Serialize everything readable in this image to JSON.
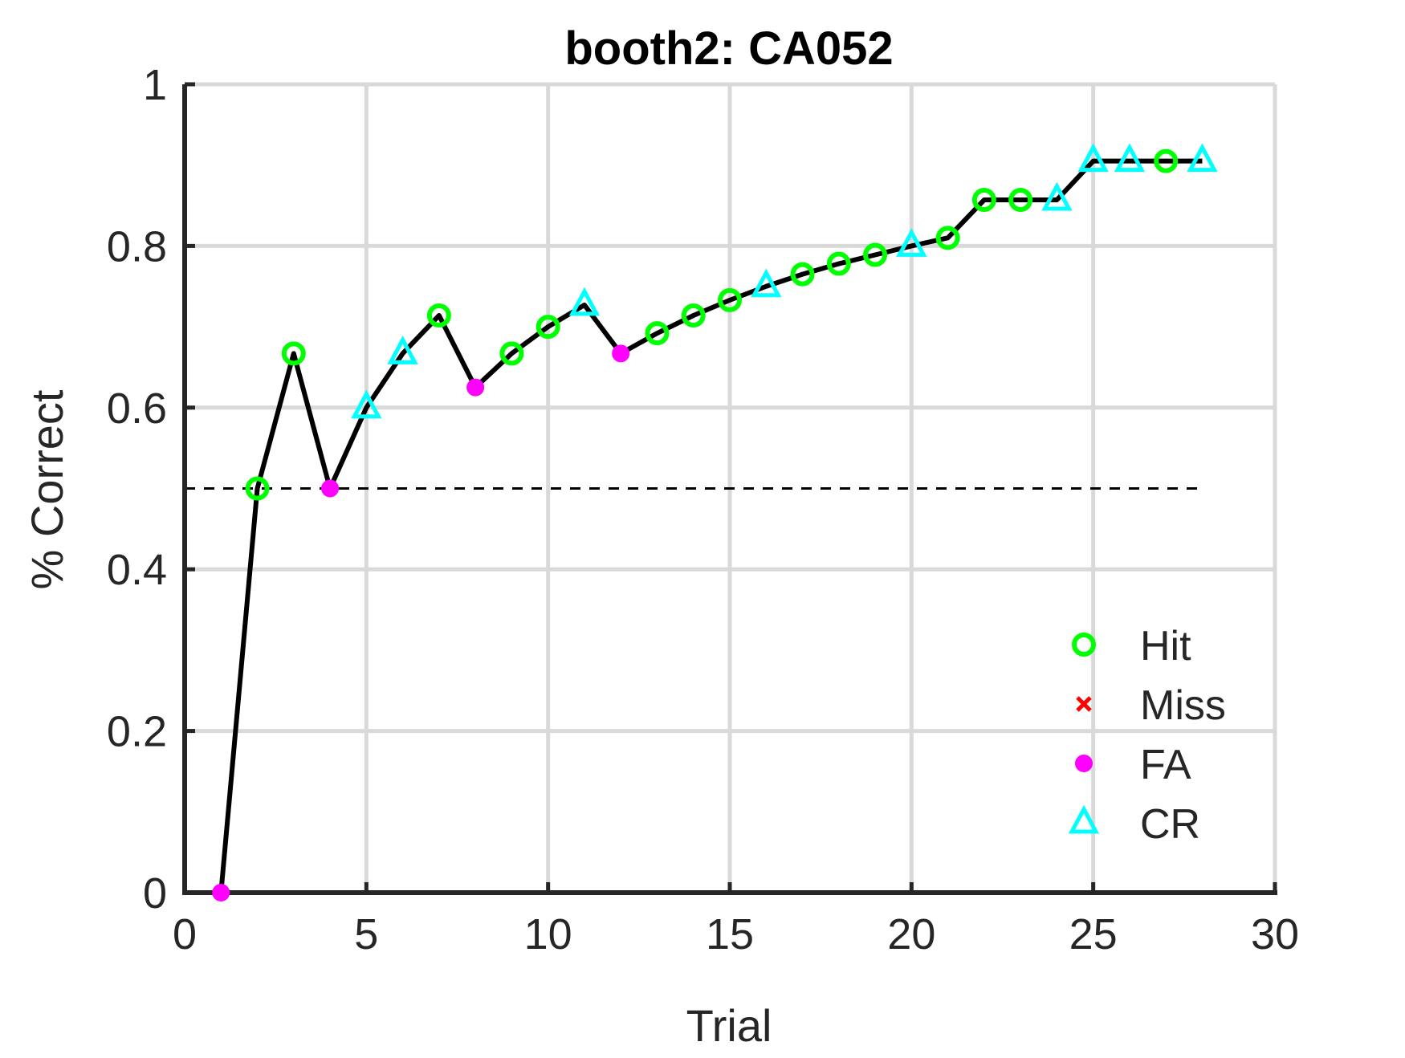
{
  "figure": {
    "title": "booth2: CA052",
    "xlabel": "Trial",
    "ylabel": "% Correct"
  },
  "colors": {
    "Hit": "#00ff00",
    "Miss": "#ff0000",
    "FA": "#ff00ff",
    "CR": "#00ffff",
    "line": "#000000",
    "grid": "#d9d9d9",
    "axis": "#262626"
  },
  "chart_data": {
    "type": "line",
    "title": "booth2: CA052",
    "xlabel": "Trial",
    "ylabel": "% Correct",
    "xlim": [
      0,
      30
    ],
    "ylim": [
      0,
      1
    ],
    "xticks": [
      0,
      5,
      10,
      15,
      20,
      25,
      30
    ],
    "yticks": [
      0,
      0.2,
      0.4,
      0.6,
      0.8,
      1
    ],
    "xtick_labels": [
      "0",
      "5",
      "10",
      "15",
      "20",
      "25",
      "30"
    ],
    "ytick_labels": [
      "0",
      "0.2",
      "0.4",
      "0.6",
      "0.8",
      "1"
    ],
    "grid": true,
    "chance_level": 0.5,
    "chance_line_x": [
      0,
      28
    ],
    "legend": {
      "placement": "bottom-right",
      "entries": [
        "Hit",
        "Miss",
        "FA",
        "CR"
      ]
    },
    "series": [
      {
        "name": "% Correct",
        "x": [
          1,
          2,
          3,
          4,
          5,
          6,
          7,
          8,
          9,
          10,
          11,
          12,
          13,
          14,
          15,
          16,
          17,
          18,
          19,
          20,
          21,
          22,
          23,
          24,
          25,
          26,
          27,
          28
        ],
        "y": [
          0,
          0.5,
          0.667,
          0.5,
          0.6,
          0.667,
          0.714,
          0.625,
          0.667,
          0.7,
          0.727,
          0.667,
          0.692,
          0.714,
          0.733,
          0.75,
          0.765,
          0.778,
          0.789,
          0.8,
          0.81,
          0.857,
          0.857,
          0.857,
          0.905,
          0.905,
          0.905,
          0.905
        ],
        "outcome": [
          "FA",
          "Hit",
          "Hit",
          "FA",
          "CR",
          "CR",
          "Hit",
          "FA",
          "Hit",
          "Hit",
          "CR",
          "FA",
          "Hit",
          "Hit",
          "Hit",
          "CR",
          "Hit",
          "Hit",
          "Hit",
          "CR",
          "Hit",
          "Hit",
          "Hit",
          "CR",
          "CR",
          "CR",
          "Hit",
          "CR"
        ]
      }
    ]
  }
}
